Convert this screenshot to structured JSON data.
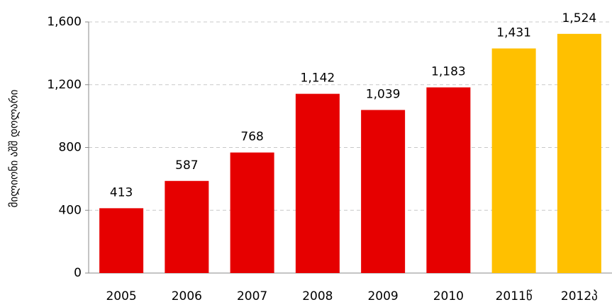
{
  "chart_data": {
    "type": "bar",
    "y_label": "მილიონი აშშ დოლარი",
    "categories": [
      "2005",
      "2006",
      "2007",
      "2008",
      "2009",
      "2010",
      "2011წ",
      "2012პ"
    ],
    "values": [
      413,
      587,
      768,
      1142,
      1039,
      1183,
      1431,
      1524
    ],
    "value_labels": [
      "413",
      "587",
      "768",
      "1,142",
      "1,039",
      "1,183",
      "1,431",
      "1,524"
    ],
    "colors": [
      "#e60000",
      "#e60000",
      "#e60000",
      "#e60000",
      "#e60000",
      "#e60000",
      "#ffc000",
      "#ffc000"
    ],
    "ylim": [
      0,
      1600
    ],
    "yticks": [
      0,
      400,
      800,
      {
        "value": 1200,
        "label": "1,200"
      },
      {
        "value": 1600,
        "label": "1,600"
      }
    ],
    "grid": true
  }
}
